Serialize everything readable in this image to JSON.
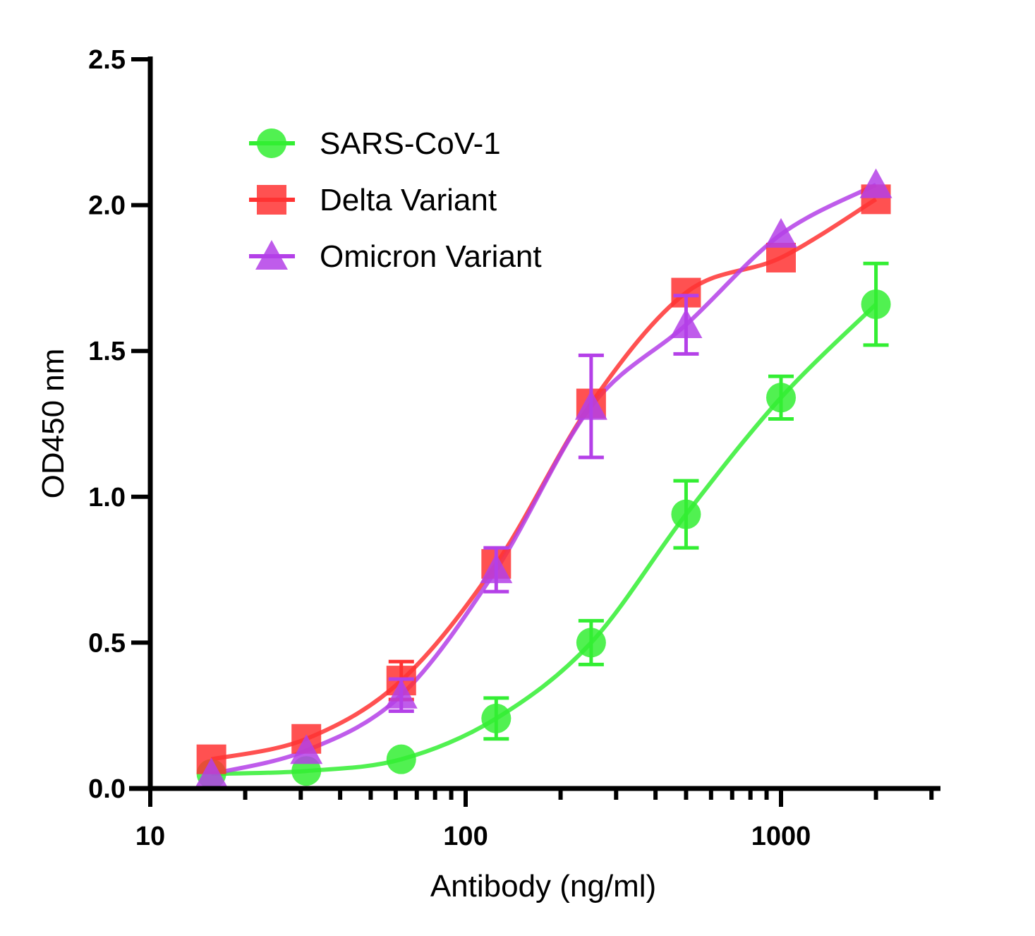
{
  "chart_data": {
    "type": "scatter",
    "title": "",
    "xlabel": "Antibody (ng/ml)",
    "ylabel": "OD450 nm",
    "xscale": "log",
    "xlim": [
      10,
      3000
    ],
    "ylim": [
      0,
      2.5
    ],
    "x_tick_labels": [
      "10",
      "100",
      "1000"
    ],
    "y_tick_labels": [
      "0.0",
      "0.5",
      "1.0",
      "1.5",
      "2.0",
      "2.5"
    ],
    "grid": false,
    "legend_position": "top-left",
    "fit_curves": true,
    "x": [
      15.625,
      31.25,
      62.5,
      125,
      250,
      500,
      1000,
      2000
    ],
    "series": [
      {
        "name": "SARS-CoV-1",
        "marker": "circle",
        "color": "#33ee33",
        "values": [
          0.05,
          0.06,
          0.1,
          0.24,
          0.5,
          0.94,
          1.34,
          1.66
        ],
        "errors": [
          0.01,
          0.01,
          0.01,
          0.07,
          0.075,
          0.115,
          0.073,
          0.14
        ]
      },
      {
        "name": "Delta Variant",
        "marker": "square",
        "color": "#ff3333",
        "values": [
          0.1,
          0.17,
          0.37,
          0.77,
          1.32,
          1.7,
          1.82,
          2.02
        ],
        "errors": [
          0.01,
          0.01,
          0.065,
          0.02,
          0.02,
          0.02,
          0.02,
          0.02
        ]
      },
      {
        "name": "Omicron Variant",
        "marker": "triangle",
        "color": "#b440e8",
        "values": [
          0.05,
          0.13,
          0.32,
          0.75,
          1.31,
          1.59,
          1.9,
          2.07
        ],
        "errors": [
          0.01,
          0.01,
          0.055,
          0.075,
          0.175,
          0.1,
          0.02,
          0.02
        ]
      }
    ]
  }
}
